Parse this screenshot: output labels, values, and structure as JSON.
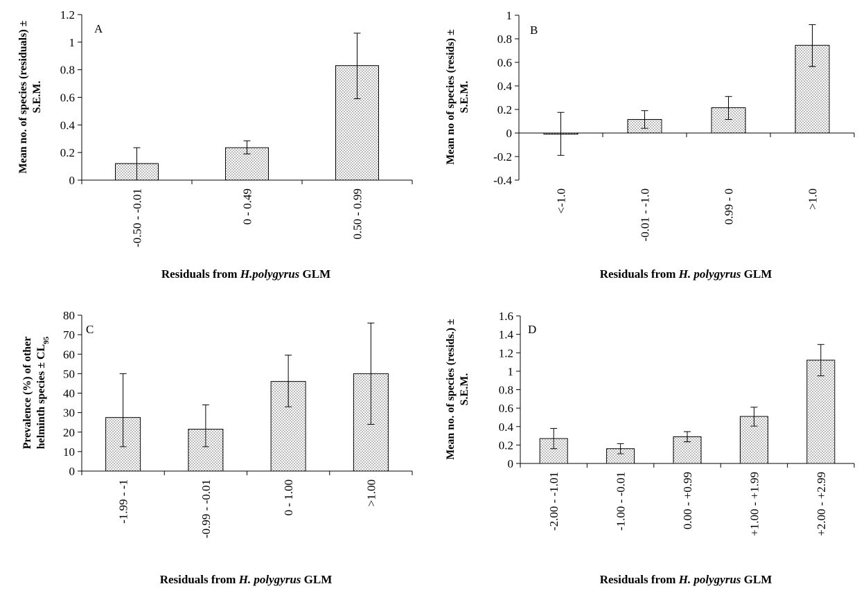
{
  "chart_data": [
    {
      "panel": "A",
      "type": "bar",
      "categories": [
        "-0.50 - -0.01",
        "0 - 0.49",
        "0.50 - 0.99"
      ],
      "values": [
        0.12,
        0.235,
        0.83
      ],
      "error_low": [
        0.0,
        0.19,
        0.59
      ],
      "error_high": [
        0.235,
        0.285,
        1.065
      ],
      "ylim": [
        0,
        1.2
      ],
      "yticks": [
        "0",
        "0.2",
        "0.4",
        "0.6",
        "0.8",
        "1",
        "1.2"
      ],
      "ylabel_lines": [
        "Mean no. of species (residuals) ±",
        "S.E.M."
      ],
      "xlabel_parts": [
        "Residuals from ",
        "H.polygyrus",
        " GLM"
      ],
      "grid": false,
      "legend": "none"
    },
    {
      "panel": "B",
      "type": "bar",
      "categories": [
        "<-1.0",
        "-0.01 - -1.0",
        "0.99 - 0",
        ">1.0"
      ],
      "values": [
        -0.01,
        0.115,
        0.215,
        0.745
      ],
      "error_low": [
        -0.19,
        0.04,
        0.115,
        0.565
      ],
      "error_high": [
        0.175,
        0.19,
        0.31,
        0.92
      ],
      "ylim": [
        -0.4,
        1
      ],
      "yticks": [
        "-0.4",
        "-0.2",
        "0",
        "0.2",
        "0.4",
        "0.6",
        "0.8",
        "1"
      ],
      "ylabel_lines": [
        "Mean no of species (resids) ±",
        "S.E.M."
      ],
      "xlabel_parts": [
        "Residuals from ",
        "H. polygyrus",
        " GLM"
      ],
      "grid": false,
      "legend": "none"
    },
    {
      "panel": "C",
      "type": "bar",
      "categories": [
        "-1.99 - -1",
        "-0.99 - -0.01",
        "0 - 1.00",
        ">1.00"
      ],
      "values": [
        27.5,
        21.5,
        46,
        50
      ],
      "error_low": [
        12.5,
        12.5,
        33,
        24
      ],
      "error_high": [
        50,
        34,
        59.5,
        76
      ],
      "ylim": [
        0,
        80
      ],
      "yticks": [
        "0",
        "10",
        "20",
        "30",
        "40",
        "50",
        "60",
        "70",
        "80"
      ],
      "ylabel_lines": [
        "Prevalence (%) of other",
        "helminth species ± CL"
      ],
      "ylabel_subscript": "95",
      "xlabel_parts": [
        "Residuals from ",
        "H. polygyrus",
        " GLM"
      ],
      "grid": false,
      "legend": "none"
    },
    {
      "panel": "D",
      "type": "bar",
      "categories": [
        "-2.00 - -1.01",
        "-1.00 - -0.01",
        "0.00 - +0.99",
        "+1.00 - +1.99",
        "+2.00 - +2.99"
      ],
      "values": [
        0.27,
        0.16,
        0.29,
        0.51,
        1.12
      ],
      "error_low": [
        0.16,
        0.105,
        0.235,
        0.405,
        0.95
      ],
      "error_high": [
        0.38,
        0.215,
        0.345,
        0.61,
        1.29
      ],
      "ylim": [
        0,
        1.6
      ],
      "yticks": [
        "0",
        "0.2",
        "0.4",
        "0.6",
        "0.8",
        "1",
        "1.2",
        "1.4",
        "1.6"
      ],
      "ylabel_lines": [
        "Mean no. of species (resids.) ±",
        "S.E.M."
      ],
      "xlabel_parts": [
        "Residuals from ",
        "H. polygyrus",
        " GLM"
      ],
      "grid": false,
      "legend": "none"
    }
  ]
}
